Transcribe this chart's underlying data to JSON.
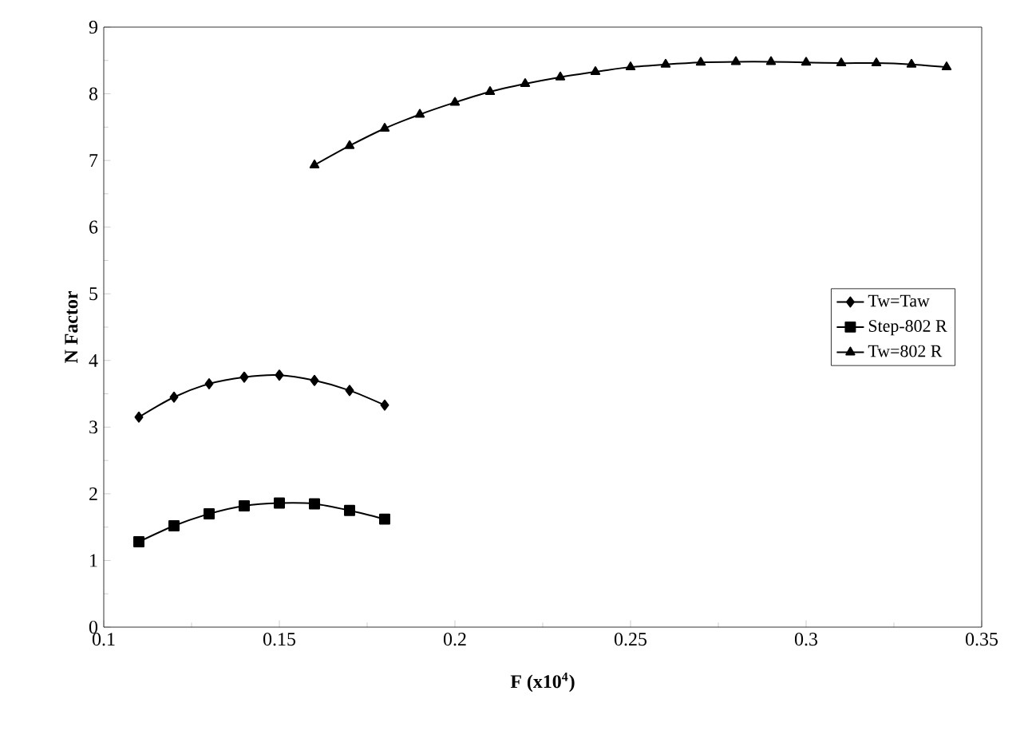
{
  "chart_data": {
    "type": "line",
    "xlabel": "F (x10$^{4}$)",
    "ylabel": "N Factor",
    "xlim": [
      0.1,
      0.35
    ],
    "xticks": [
      0.1,
      0.15,
      0.2,
      0.25,
      0.3,
      0.35
    ],
    "ylim": [
      0,
      9
    ],
    "yticks": [
      0,
      1,
      2,
      3,
      4,
      5,
      6,
      7,
      8,
      9
    ],
    "legend": "right",
    "grid": false,
    "line_style": "solid",
    "series": [
      {
        "name": "Tw=Taw",
        "color": "#000000",
        "marker": "diamond",
        "x": [
          0.11,
          0.12,
          0.13,
          0.14,
          0.15,
          0.16,
          0.17,
          0.18
        ],
        "values": [
          3.15,
          3.45,
          3.65,
          3.75,
          3.78,
          3.7,
          3.55,
          3.33
        ]
      },
      {
        "name": "Step-802 R",
        "color": "#000000",
        "marker": "square",
        "x": [
          0.11,
          0.12,
          0.13,
          0.14,
          0.15,
          0.16,
          0.17,
          0.18
        ],
        "values": [
          1.28,
          1.52,
          1.7,
          1.82,
          1.86,
          1.85,
          1.75,
          1.62
        ]
      },
      {
        "name": "Tw=802 R",
        "color": "#000000",
        "marker": "triangle",
        "x": [
          0.16,
          0.17,
          0.18,
          0.19,
          0.2,
          0.21,
          0.22,
          0.23,
          0.24,
          0.25,
          0.26,
          0.27,
          0.28,
          0.29,
          0.3,
          0.31,
          0.32,
          0.33,
          0.34
        ],
        "values": [
          6.93,
          7.22,
          7.48,
          7.69,
          7.87,
          8.03,
          8.15,
          8.25,
          8.33,
          8.4,
          8.44,
          8.47,
          8.48,
          8.48,
          8.47,
          8.46,
          8.46,
          8.44,
          8.4
        ]
      }
    ]
  }
}
